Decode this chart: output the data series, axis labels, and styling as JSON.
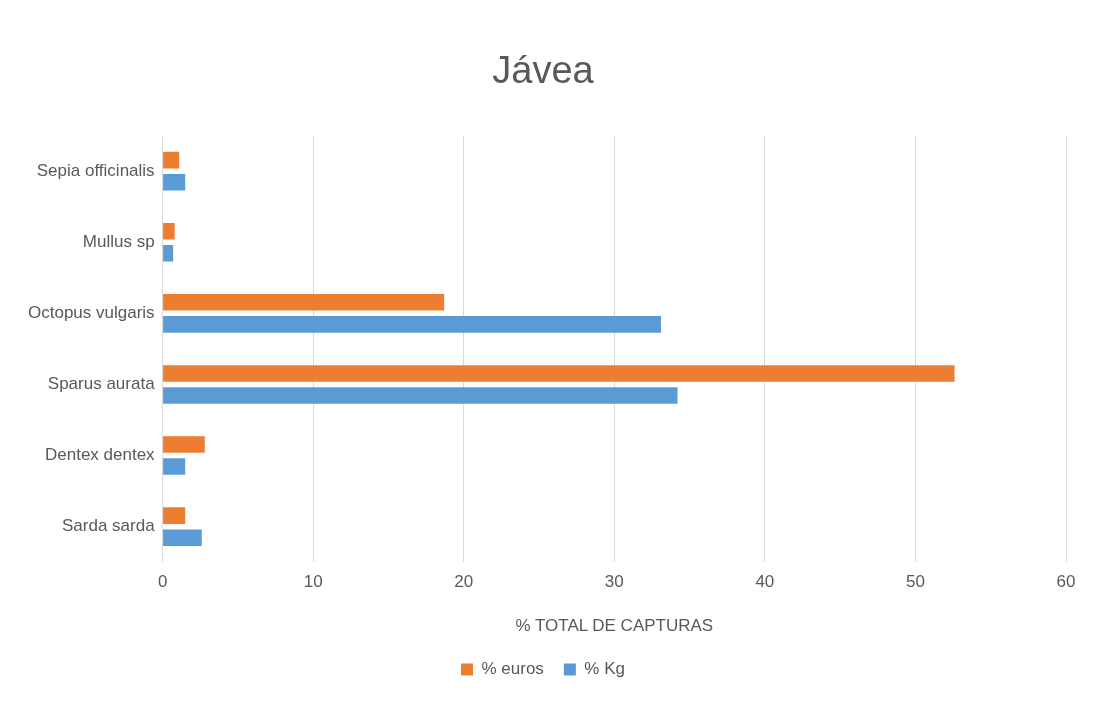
{
  "chart_data": {
    "type": "bar",
    "orientation": "horizontal",
    "title": "Jávea",
    "xlabel": "% TOTAL DE CAPTURAS",
    "categories": [
      "Sepia officinalis",
      "Mullus sp",
      "Octopus vulgaris",
      "Sparus aurata",
      "Dentex dentex",
      "Sarda sarda"
    ],
    "series": [
      {
        "name": "% euros",
        "color": "#ed7d31",
        "values": [
          1.1,
          0.8,
          18.7,
          52.6,
          2.8,
          1.5
        ]
      },
      {
        "name": "% Kg",
        "color": "#5b9bd5",
        "values": [
          1.5,
          0.7,
          33.1,
          34.2,
          1.5,
          2.6
        ]
      }
    ],
    "xlim": [
      0,
      60
    ],
    "xticks": [
      0,
      10,
      20,
      30,
      40,
      50,
      60
    ],
    "grid": "x",
    "legend": "bottom"
  }
}
